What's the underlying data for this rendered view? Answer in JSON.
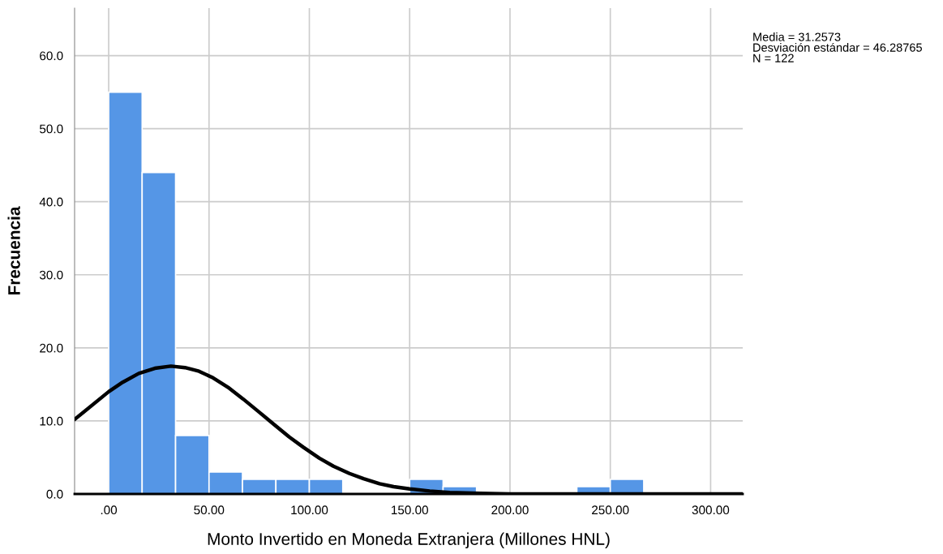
{
  "chart_data": {
    "type": "histogram",
    "xlabel": "Monto Invertido en Moneda Extranjera (Millones HNL)",
    "ylabel": "Frecuencia",
    "annotations": [
      "Media = 31.2573\nDesviación estándar = 46.28765\nN = 122"
    ],
    "bins": [
      0,
      16.67,
      33.33,
      50,
      66.67,
      83.33,
      100,
      116.67,
      133.33,
      150,
      166.67,
      183.33,
      200,
      216.67,
      233.33,
      250,
      266.67
    ],
    "series": [
      {
        "type": "histogram",
        "color": "#5596e6",
        "values": [
          55,
          44,
          8,
          3,
          2,
          2,
          2,
          0,
          0,
          2,
          1,
          0,
          0,
          0,
          1,
          2
        ]
      },
      {
        "type": "line",
        "color": "#000000",
        "x": [
          -17,
          0,
          7,
          15,
          23,
          31,
          38,
          45,
          52,
          60,
          67,
          75,
          82,
          90,
          97,
          105,
          112,
          120,
          127,
          135,
          142,
          150,
          160,
          170,
          185,
          200,
          250,
          316
        ],
        "values": [
          10.2,
          14.0,
          15.3,
          16.5,
          17.2,
          17.5,
          17.3,
          16.8,
          15.9,
          14.5,
          13.0,
          11.2,
          9.6,
          7.8,
          6.4,
          4.9,
          3.8,
          2.8,
          2.1,
          1.4,
          1.0,
          0.7,
          0.4,
          0.2,
          0.1,
          0.0,
          0.0,
          0.0
        ]
      }
    ],
    "xlim": [
      -17,
      316
    ],
    "ylim": [
      0,
      66.5
    ],
    "xticks": [
      {
        "value": 0,
        "label": ".00"
      },
      {
        "value": 50,
        "label": "50.00"
      },
      {
        "value": 100,
        "label": "100.00"
      },
      {
        "value": 150,
        "label": "150.00"
      },
      {
        "value": 200,
        "label": "200.00"
      },
      {
        "value": 250,
        "label": "250.00"
      },
      {
        "value": 300,
        "label": "300.00"
      }
    ],
    "yticks": [
      {
        "value": 0,
        "label": "0.0"
      },
      {
        "value": 10,
        "label": "10.0"
      },
      {
        "value": 20,
        "label": "20.0"
      },
      {
        "value": 30,
        "label": "30.0"
      },
      {
        "value": 40,
        "label": "40.0"
      },
      {
        "value": 50,
        "label": "50.0"
      },
      {
        "value": 60,
        "label": "60.0"
      }
    ],
    "grid": true,
    "legend": false,
    "line_style": "solid",
    "marker": "none"
  }
}
